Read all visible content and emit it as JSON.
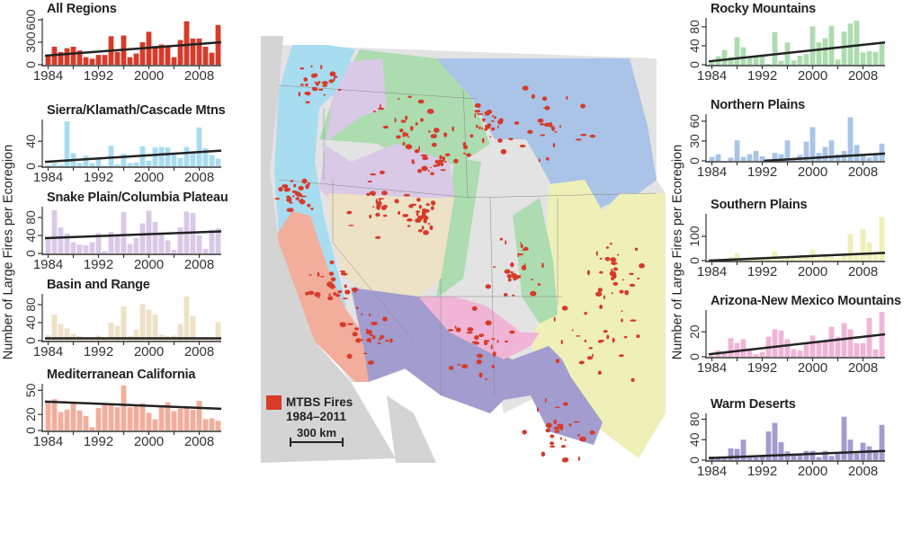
{
  "y_axis_label": "Number of Large Fires per Ecoregion",
  "legend": {
    "label_line1": "MTBS Fires",
    "label_line2": "1984–2011",
    "color": "#d63b2a",
    "scale_label": "300 km"
  },
  "map_colors": {
    "ocean": "#d4d4d4",
    "plateau": "#e3e3e3",
    "northern_plains": "#a9c4e6",
    "southern_plains": "#eef0b8",
    "rocky": "#acdcb0",
    "snake": "#d9c9e6",
    "basin": "#ede2c6",
    "sierra": "#a8dcf0",
    "med_ca": "#f2ad9b",
    "warm_deserts": "#a29ccf",
    "az_nm": "#f0b5d6",
    "fires": "#d63b2a"
  },
  "chart_data": [
    {
      "type": "bar",
      "title": "All Regions",
      "color": "#d63b2a",
      "xlim": [
        1984,
        2011
      ],
      "xticklabels": [
        "1984",
        "1992",
        "2000",
        "2008"
      ],
      "ylim": [
        0,
        600
      ],
      "yticklabels": [
        "0",
        "300",
        "600"
      ],
      "values": [
        110,
        240,
        170,
        220,
        240,
        190,
        100,
        80,
        130,
        130,
        380,
        170,
        390,
        100,
        150,
        300,
        440,
        250,
        270,
        260,
        100,
        330,
        580,
        350,
        350,
        240,
        160,
        530
      ],
      "trend": [
        120,
        300
      ]
    },
    {
      "type": "bar",
      "title": "Sierra/Klamath/Cascade Mtns",
      "color": "#a8dcf0",
      "xlim": [
        1984,
        2011
      ],
      "xticklabels": [
        "1984",
        "1992",
        "2000",
        "2008"
      ],
      "ylim": [
        0,
        72
      ],
      "yticklabels": [
        "0",
        "40"
      ],
      "values": [
        2,
        5,
        2,
        72,
        21,
        5,
        17,
        5,
        11,
        1,
        33,
        3,
        20,
        5,
        6,
        32,
        9,
        30,
        31,
        30,
        19,
        13,
        31,
        20,
        62,
        29,
        18,
        12
      ],
      "trend": [
        7,
        25
      ]
    },
    {
      "type": "bar",
      "title": "Snake Plain/Columbia Plateau",
      "color": "#d9c9e6",
      "xlim": [
        1984,
        2011
      ],
      "xticklabels": [
        "1984",
        "1992",
        "2000",
        "2008"
      ],
      "ylim": [
        0,
        100
      ],
      "yticklabels": [
        "0",
        "40",
        "80"
      ],
      "values": [
        35,
        96,
        58,
        44,
        25,
        20,
        18,
        25,
        45,
        5,
        48,
        40,
        92,
        21,
        34,
        67,
        95,
        70,
        42,
        29,
        8,
        58,
        93,
        90,
        40,
        10,
        53,
        56
      ],
      "trend": [
        34,
        49
      ]
    },
    {
      "type": "bar",
      "title": "Basin and Range",
      "color": "#ede2c6",
      "xlim": [
        1984,
        2011
      ],
      "xticklabels": [
        "1984",
        "1992",
        "2000",
        "2008"
      ],
      "ylim": [
        0,
        100
      ],
      "yticklabels": [
        "0",
        "40",
        "80"
      ],
      "values": [
        12,
        58,
        37,
        27,
        15,
        10,
        5,
        3,
        11,
        5,
        40,
        32,
        76,
        10,
        24,
        81,
        69,
        58,
        13,
        10,
        11,
        37,
        98,
        55,
        5,
        8,
        5,
        41
      ],
      "trend": [
        5,
        5
      ]
    },
    {
      "type": "bar",
      "title": "Mediterranean California",
      "color": "#f2ad9b",
      "xlim": [
        1984,
        2011
      ],
      "xticklabels": [
        "1984",
        "1992",
        "2000",
        "2008"
      ],
      "ylim": [
        0,
        56
      ],
      "yticklabels": [
        "0",
        "20",
        "50"
      ],
      "values": [
        36,
        39,
        23,
        26,
        34,
        25,
        18,
        4,
        28,
        33,
        33,
        29,
        56,
        29,
        32,
        34,
        22,
        14,
        30,
        35,
        24,
        27,
        30,
        26,
        37,
        14,
        15,
        12
      ],
      "trend": [
        36,
        27
      ]
    },
    {
      "type": "bar",
      "title": "Rocky Mountains",
      "color": "#acdcb0",
      "xlim": [
        1984,
        2011
      ],
      "xticklabels": [
        "1984",
        "1992",
        "2000",
        "2008"
      ],
      "ylim": [
        0,
        95
      ],
      "yticklabels": [
        "0",
        "40",
        "80"
      ],
      "values": [
        5,
        18,
        31,
        16,
        58,
        37,
        16,
        17,
        18,
        2,
        69,
        8,
        47,
        9,
        19,
        22,
        81,
        47,
        56,
        82,
        11,
        70,
        87,
        93,
        26,
        29,
        27,
        44
      ],
      "trend": [
        7,
        47
      ]
    },
    {
      "type": "bar",
      "title": "Northern Plains",
      "color": "#a9c4e6",
      "xlim": [
        1984,
        2011
      ],
      "xticklabels": [
        "1984",
        "1992",
        "2000",
        "2008"
      ],
      "ylim": [
        0,
        68
      ],
      "yticklabels": [
        "0",
        "30",
        "60"
      ],
      "values": [
        6,
        10,
        0,
        5,
        31,
        6,
        10,
        15,
        7,
        3,
        12,
        10,
        31,
        3,
        9,
        29,
        51,
        12,
        21,
        31,
        10,
        15,
        66,
        24,
        8,
        5,
        10,
        26
      ],
      "trend": [
        -5,
        11
      ]
    },
    {
      "type": "bar",
      "title": "Southern Plains",
      "color": "#eef0b8",
      "xlim": [
        1984,
        2011
      ],
      "xticklabels": [
        "1984",
        "1992",
        "2000",
        "2008"
      ],
      "ylim": [
        0,
        185
      ],
      "yticklabels": [
        "0",
        "100"
      ],
      "values": [
        3,
        8,
        2,
        15,
        30,
        3,
        5,
        5,
        8,
        10,
        38,
        5,
        15,
        10,
        15,
        20,
        45,
        10,
        28,
        15,
        8,
        22,
        110,
        20,
        130,
        75,
        25,
        180
      ],
      "trend": [
        0,
        32
      ]
    },
    {
      "type": "bar",
      "title": "Arizona-New Mexico Mountains",
      "color": "#f0b5d6",
      "xlim": [
        1984,
        2011
      ],
      "xticklabels": [
        "1984",
        "1992",
        "2000",
        "2008"
      ],
      "ylim": [
        0,
        36
      ],
      "yticklabels": [
        "0",
        "20"
      ],
      "values": [
        1,
        5,
        3,
        15,
        11,
        14,
        5,
        2,
        4,
        16,
        22,
        21,
        14,
        6,
        5,
        11,
        17,
        11,
        13,
        24,
        16,
        27,
        22,
        11,
        11,
        31,
        6,
        36
      ],
      "trend": [
        2,
        18
      ]
    },
    {
      "type": "bar",
      "title": "Warm Deserts",
      "color": "#a29ccf",
      "xlim": [
        1984,
        2011
      ],
      "xticklabels": [
        "1984",
        "1992",
        "2000",
        "2008"
      ],
      "ylim": [
        0,
        88
      ],
      "yticklabels": [
        "0",
        "40",
        "80"
      ],
      "values": [
        7,
        5,
        3,
        23,
        22,
        40,
        5,
        5,
        8,
        56,
        73,
        35,
        17,
        10,
        10,
        18,
        18,
        6,
        18,
        8,
        12,
        85,
        40,
        13,
        34,
        27,
        18,
        69
      ],
      "trend": [
        4,
        18
      ]
    }
  ]
}
